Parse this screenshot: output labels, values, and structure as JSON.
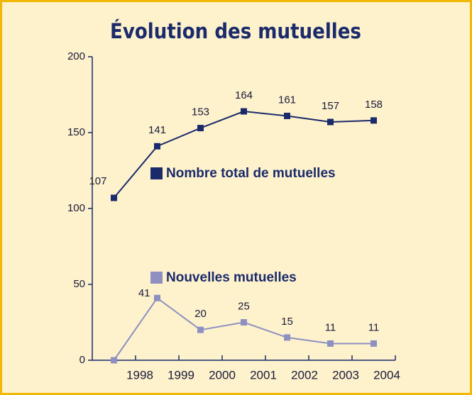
{
  "chart_data": {
    "type": "line",
    "title": "Évolution des mutuelles",
    "x": [
      1997.5,
      1998.5,
      1999.5,
      2000.5,
      2001.5,
      2002.5,
      2003.5
    ],
    "xlim": [
      1997,
      2004
    ],
    "xticks": [
      1998,
      1999,
      2000,
      2001,
      2002,
      2003,
      2004
    ],
    "ylim": [
      0,
      200
    ],
    "yticks": [
      0,
      50,
      100,
      150,
      200
    ],
    "series": [
      {
        "name": "Nombre total de mutuelles",
        "color": "#1b2a6b",
        "values": [
          107,
          141,
          153,
          164,
          161,
          157,
          158
        ]
      },
      {
        "name": "Nouvelles mutuelles",
        "color": "#8f90c2",
        "values": [
          0,
          41,
          20,
          25,
          15,
          11,
          11
        ],
        "value_labels": [
          null,
          "41",
          "20",
          "25",
          "15",
          "11",
          "11"
        ]
      }
    ]
  }
}
